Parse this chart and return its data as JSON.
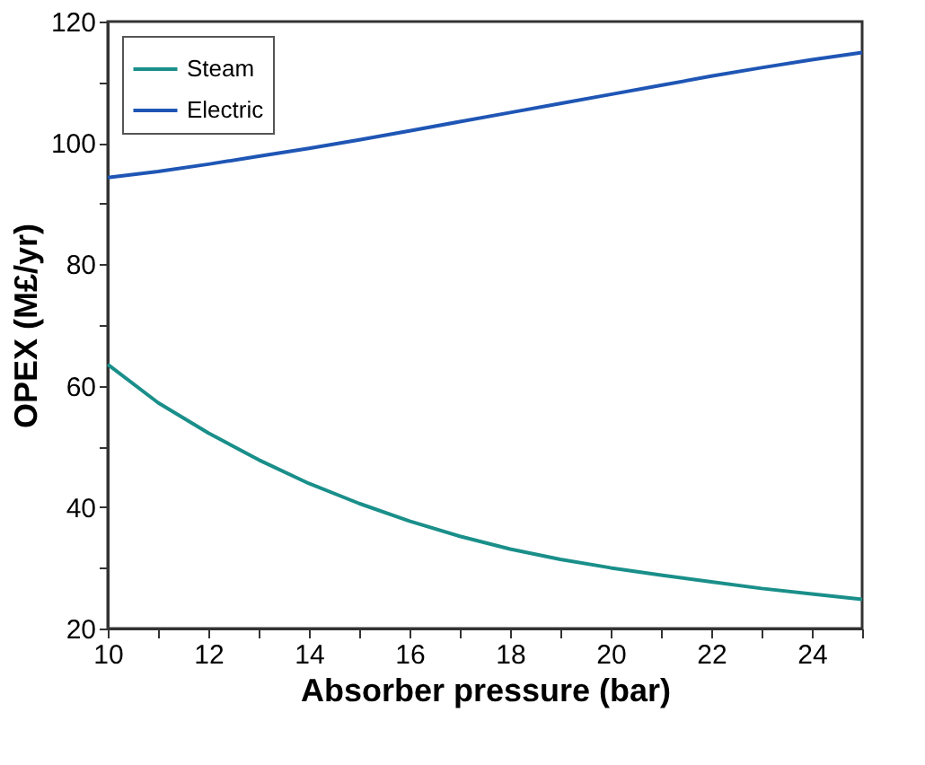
{
  "chart_data": {
    "type": "line",
    "xlabel": "Absorber pressure (bar)",
    "ylabel": "OPEX (M£/yr)",
    "xlim": [
      10,
      25
    ],
    "ylim": [
      20,
      120
    ],
    "xticks": [
      10,
      {
        "value": 11,
        "label": null
      },
      12,
      {
        "value": 13,
        "label": null
      },
      14,
      {
        "value": 15,
        "label": null
      },
      16,
      {
        "value": 17,
        "label": null
      },
      18,
      {
        "value": 19,
        "label": null
      },
      20,
      {
        "value": 21,
        "label": null
      },
      22,
      {
        "value": 23,
        "label": null
      },
      24,
      {
        "value": 25,
        "label": null
      }
    ],
    "yticks": [
      20,
      {
        "value": 30,
        "label": null
      },
      40,
      {
        "value": 50,
        "label": null
      },
      60,
      {
        "value": 70,
        "label": null
      },
      80,
      {
        "value": 90,
        "label": null
      },
      100,
      {
        "value": 110,
        "label": null
      },
      120
    ],
    "x": [
      10,
      11,
      12,
      13,
      14,
      15,
      16,
      17,
      18,
      19,
      20,
      21,
      22,
      23,
      24,
      25
    ],
    "series": [
      {
        "name": "Steam",
        "color": "#1a8f8a",
        "values": [
          63.5,
          57.2,
          52.2,
          47.8,
          43.9,
          40.6,
          37.7,
          35.2,
          33.1,
          31.4,
          30.0,
          28.8,
          27.7,
          26.6,
          25.7,
          24.8
        ]
      },
      {
        "name": "Electric",
        "color": "#1f56b5",
        "values": [
          94.3,
          95.3,
          96.5,
          97.8,
          99.1,
          100.5,
          102.0,
          103.5,
          105.0,
          106.5,
          108.0,
          109.5,
          111.0,
          112.4,
          113.7,
          114.9
        ]
      }
    ],
    "legend": "top left",
    "grid": false,
    "marker": "none",
    "line_style": "solid"
  }
}
